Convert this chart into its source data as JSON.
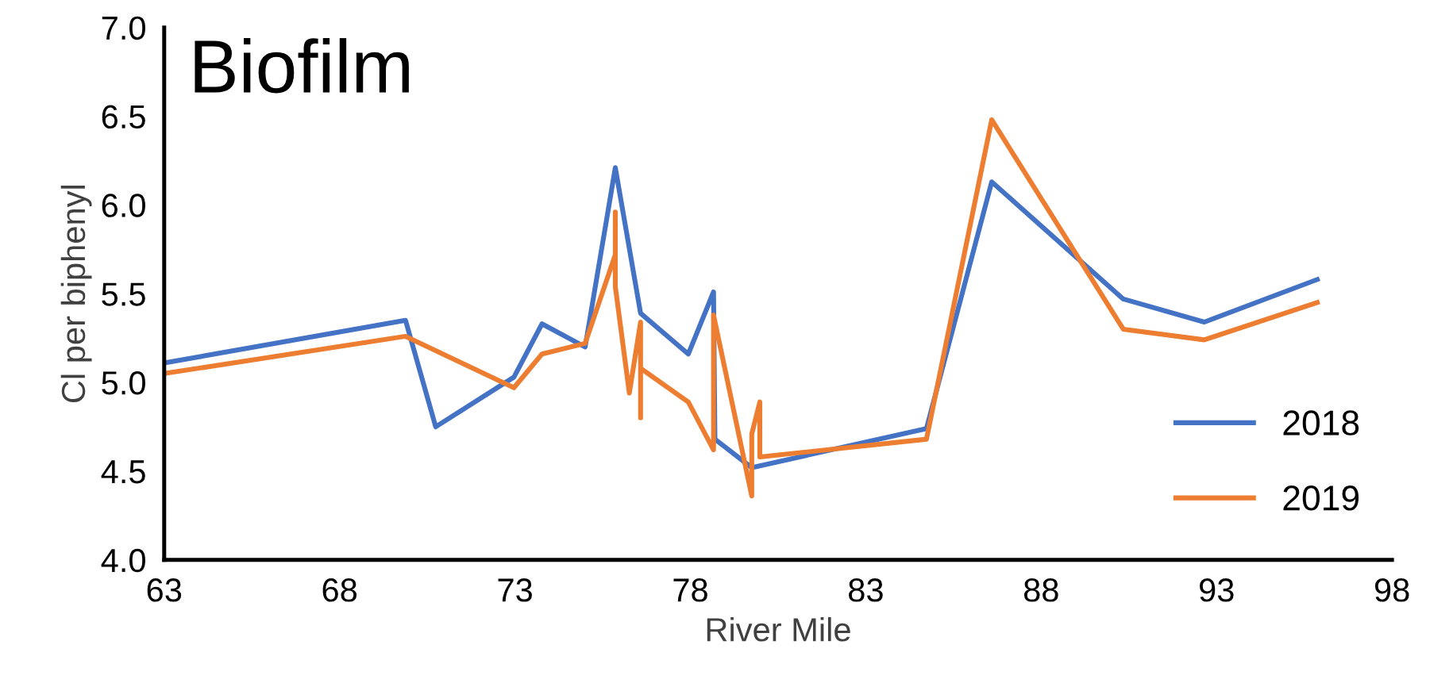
{
  "chart_data": {
    "type": "line",
    "title": "Biofilm",
    "xlabel": "River Mile",
    "ylabel": "Cl per biphenyl",
    "xlim": [
      63,
      98
    ],
    "xticks": [
      63,
      68,
      73,
      78,
      83,
      88,
      93,
      98
    ],
    "ylim": [
      4,
      7
    ],
    "yticks": [
      {
        "value": 4,
        "label": "4.0"
      },
      {
        "value": 4.5,
        "label": "4.5"
      },
      {
        "value": 5,
        "label": "5.0"
      },
      {
        "value": 5.5,
        "label": "5.5"
      },
      {
        "value": 6,
        "label": "6.0"
      },
      {
        "value": 6.5,
        "label": "6.5"
      },
      {
        "value": 7,
        "label": "7.0"
      }
    ],
    "grid": false,
    "legend": "lower right",
    "marker": "none",
    "line_style": "solid",
    "series": [
      {
        "name": "2018",
        "color": "#4472c4",
        "x": [
          63,
          69.88,
          70.74,
          72.97,
          73.77,
          75.0,
          75.86,
          76.58,
          77.94,
          78.66,
          78.7,
          79.75,
          84.73,
          86.59,
          90.34,
          92.65,
          95.87
        ],
        "values": [
          5.11,
          5.35,
          4.75,
          5.03,
          5.33,
          5.2,
          6.21,
          5.39,
          5.16,
          5.51,
          4.68,
          4.52,
          4.74,
          6.13,
          5.47,
          5.34,
          5.58
        ]
      },
      {
        "name": "2019",
        "color": "#ed7d31",
        "x": [
          63,
          69.88,
          72.97,
          73.77,
          75.0,
          75.86,
          75.86,
          75.86,
          76.26,
          76.58,
          76.58,
          76.58,
          77.94,
          78.66,
          78.66,
          79.75,
          79.75,
          79.98,
          79.98,
          84.73,
          86.59,
          90.34,
          92.65,
          95.87
        ],
        "values": [
          5.05,
          5.26,
          4.97,
          5.16,
          5.22,
          5.72,
          5.96,
          5.54,
          4.94,
          5.34,
          4.8,
          5.08,
          4.89,
          4.62,
          5.38,
          4.36,
          4.71,
          4.89,
          4.58,
          4.68,
          6.48,
          5.3,
          5.24,
          5.45
        ]
      }
    ]
  }
}
